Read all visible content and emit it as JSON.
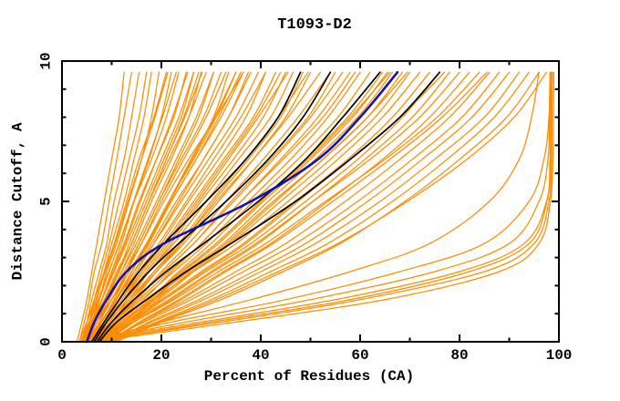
{
  "page": {
    "background": "#ffffff"
  },
  "chart_data": {
    "type": "line",
    "title": "T1093-D2",
    "xlabel": "Percent of Residues (CA)",
    "ylabel": "Distance Cutoff, A",
    "xlim": [
      0,
      100
    ],
    "ylim": [
      0,
      10
    ],
    "x_major_ticks": [
      0,
      20,
      40,
      60,
      80,
      100
    ],
    "x_minor_ticks": [
      10,
      30,
      50,
      70,
      90
    ],
    "y_major_ticks": [
      0,
      5,
      10
    ],
    "y_minor_ticks": [
      1,
      2,
      3,
      4,
      6,
      7,
      8,
      9
    ],
    "grid": false,
    "legend": null,
    "axis_color": "#000000",
    "background_color": "#ffffff",
    "y_anchors": [
      0,
      0.7,
      1.5,
      2.5,
      3.5,
      5,
      6.5,
      8,
      9.6
    ],
    "series": [
      {
        "name": "predicted-model-curves",
        "color": "#ff8c00",
        "stroke_width": 1.25,
        "curves": [
          [
            3,
            4,
            5,
            6,
            7,
            8.5,
            10,
            11.5,
            12.5
          ],
          [
            3.5,
            4.5,
            5.5,
            6.5,
            8,
            9.5,
            11,
            12.5,
            14
          ],
          [
            4,
            5,
            6,
            7.5,
            9,
            10.5,
            12.5,
            14,
            15.5
          ],
          [
            4,
            5.5,
            6.5,
            8,
            9.5,
            11.5,
            13.5,
            15.5,
            17
          ],
          [
            4.5,
            5.5,
            7,
            8.5,
            10,
            12.5,
            14.5,
            16.5,
            18
          ],
          [
            5,
            6,
            7.5,
            9,
            11,
            13.5,
            16,
            18,
            19.5
          ],
          [
            3.5,
            5,
            6.5,
            8.5,
            10.5,
            13,
            15.5,
            18.5,
            21
          ],
          [
            5,
            6.5,
            8,
            10,
            12,
            14.5,
            17.5,
            20,
            22
          ],
          [
            3.5,
            5,
            6.8,
            8.7,
            10.7,
            13.3,
            16,
            18.7,
            21.3
          ],
          [
            4,
            5.8,
            8,
            10.3,
            12.7,
            15.8,
            19,
            22.2,
            25.3
          ],
          [
            3.8,
            5.4,
            7.3,
            9.4,
            11.6,
            14.4,
            17.3,
            20.2,
            23
          ],
          [
            4,
            5.5,
            7.5,
            9.5,
            11.5,
            14.5,
            18,
            21,
            23.5
          ],
          [
            4.5,
            6,
            8,
            10,
            12.5,
            15.5,
            19,
            22.5,
            25
          ],
          [
            5,
            7,
            9,
            11.5,
            13.5,
            17,
            20.5,
            24,
            26.5
          ],
          [
            5.5,
            7.5,
            9.5,
            12,
            14.5,
            18,
            22,
            25.5,
            28
          ],
          [
            4,
            6,
            8.5,
            11,
            14,
            17.5,
            21.5,
            25.5,
            29
          ],
          [
            6,
            8,
            10.5,
            13,
            15.5,
            19.5,
            23.5,
            27.5,
            30.5
          ],
          [
            5,
            7,
            9.5,
            12.5,
            15.5,
            19.5,
            24,
            28.5,
            32
          ],
          [
            6.5,
            8.5,
            11,
            14,
            17,
            21.5,
            26,
            30.5,
            33.5
          ],
          [
            5.5,
            8,
            10.5,
            13.5,
            17,
            21.5,
            26.5,
            31,
            35
          ],
          [
            4.5,
            6.5,
            9,
            11.5,
            14,
            17.5,
            21,
            24.5,
            27.5
          ],
          [
            4,
            6,
            8,
            10.5,
            13,
            16.5,
            20,
            23.5,
            26.5
          ],
          [
            4.2,
            6.2,
            8.7,
            11.3,
            14,
            17.5,
            21,
            24.7,
            28.2
          ],
          [
            5,
            7,
            9.5,
            12,
            15,
            19,
            23,
            27,
            30.5
          ],
          [
            5.2,
            7.8,
            10.8,
            14,
            17.3,
            21.7,
            26.2,
            30.7,
            35
          ],
          [
            5,
            7.5,
            10,
            13,
            16,
            20,
            24.5,
            29,
            33
          ],
          [
            4.5,
            7,
            10,
            13,
            16,
            20.5,
            25.5,
            31,
            36.5
          ],
          [
            6,
            8.5,
            11.5,
            14.5,
            18,
            23,
            28.5,
            33.5,
            38
          ],
          [
            5,
            8,
            11,
            14.5,
            18.5,
            24,
            29.5,
            35,
            39.5
          ],
          [
            6.5,
            9,
            12.5,
            16,
            20,
            25.5,
            31.5,
            37,
            41
          ],
          [
            5.5,
            8.5,
            12,
            16,
            20.5,
            26.5,
            32.5,
            38.5,
            43
          ],
          [
            7,
            10,
            13.5,
            17.5,
            22,
            28,
            34.5,
            40.5,
            45
          ],
          [
            6,
            9.5,
            13,
            17.5,
            22.5,
            29,
            35.5,
            42,
            46.5
          ],
          [
            7.5,
            10.5,
            14.5,
            19,
            24,
            30.5,
            37.5,
            44,
            48.5
          ],
          [
            6.5,
            10,
            14,
            19,
            24.5,
            31.5,
            38.5,
            45,
            50
          ],
          [
            5.5,
            8,
            11,
            14,
            17.5,
            22,
            27,
            31.5,
            36
          ],
          [
            6,
            9,
            12.5,
            16.5,
            21,
            27,
            33,
            39,
            44
          ],
          [
            6,
            8.5,
            11.5,
            15,
            18.5,
            23.5,
            28.5,
            33.5,
            37.5
          ],
          [
            6.5,
            9.5,
            13,
            17,
            21.5,
            27.5,
            33.5,
            39.5,
            45.5
          ],
          [
            7,
            10,
            14,
            18.5,
            23.5,
            30,
            37,
            43.5,
            49.5
          ],
          [
            4.5,
            7,
            10,
            13.5,
            17,
            22,
            27,
            32,
            36.5
          ],
          [
            5.5,
            8.5,
            12,
            15.5,
            19.5,
            25,
            30.5,
            36,
            41
          ],
          [
            5.5,
            9,
            13.5,
            18.5,
            24,
            31,
            38.5,
            45.5,
            52
          ],
          [
            7,
            10.5,
            15,
            20,
            25.5,
            33,
            40.5,
            47.5,
            54
          ],
          [
            6,
            10,
            15,
            20.5,
            26.5,
            34.5,
            42.5,
            50,
            56.5
          ],
          [
            7.5,
            11.5,
            16.5,
            22,
            28,
            36,
            44,
            51.5,
            58
          ],
          [
            6.5,
            11,
            16,
            22.5,
            29,
            37.5,
            46,
            53.5,
            60
          ],
          [
            8,
            12,
            17.5,
            23.5,
            30,
            38.5,
            47.5,
            55.5,
            62
          ],
          [
            7,
            11.5,
            17,
            24,
            31,
            40,
            49,
            57.5,
            64.5
          ],
          [
            8.5,
            13,
            18.5,
            25,
            32.5,
            41.5,
            51,
            59.5,
            66.5
          ],
          [
            7.5,
            12.5,
            18,
            25.5,
            33,
            42.5,
            52.5,
            61.5,
            68.5
          ],
          [
            9,
            13.5,
            19.5,
            26.5,
            34,
            44,
            54,
            63,
            70
          ],
          [
            7,
            10.5,
            15,
            20.5,
            26.5,
            34,
            42,
            49.5,
            55
          ],
          [
            6.5,
            10.5,
            15.5,
            21.5,
            28,
            36,
            44.5,
            52.5,
            59
          ],
          [
            8,
            12.5,
            18,
            24.5,
            31.5,
            40.5,
            50,
            58.5,
            65.5
          ],
          [
            7.5,
            12,
            17.5,
            24,
            31,
            40,
            49.5,
            58,
            66
          ],
          [
            8.5,
            13,
            19,
            26,
            33.5,
            43,
            52.5,
            61.5,
            69.5
          ],
          [
            7,
            12,
            18.5,
            26.5,
            35,
            45.5,
            55.5,
            64.5,
            72
          ],
          [
            8,
            13,
            20,
            28,
            36.5,
            47,
            57.5,
            66.5,
            74
          ],
          [
            7.5,
            13.5,
            20.5,
            29,
            38,
            49,
            59.5,
            68.5,
            76
          ],
          [
            9,
            14.5,
            22,
            30.5,
            39.5,
            50.5,
            61,
            70.5,
            78
          ],
          [
            8.5,
            14,
            21.5,
            30,
            39,
            50.5,
            62,
            72,
            80
          ],
          [
            9.5,
            15.5,
            23.5,
            32.5,
            42,
            53.5,
            64.5,
            74,
            82
          ],
          [
            8,
            14.5,
            22.5,
            31.5,
            41,
            53,
            65,
            75.5,
            84
          ],
          [
            9,
            14,
            20.5,
            28.5,
            37,
            47.5,
            58,
            68,
            77
          ],
          [
            9,
            16,
            25,
            35,
            45,
            57,
            68,
            78,
            86
          ],
          [
            8.5,
            16.5,
            26,
            36.5,
            47,
            59.5,
            70.5,
            80.5,
            88
          ],
          [
            10,
            17.5,
            27.5,
            38.5,
            49,
            61.5,
            72.5,
            82.5,
            90
          ],
          [
            9.5,
            18,
            28.5,
            40,
            51,
            64,
            75,
            85,
            92
          ],
          [
            10.5,
            19,
            30,
            42,
            53.5,
            66.5,
            77.5,
            87,
            94
          ],
          [
            11,
            20,
            32,
            44.5,
            56,
            69,
            80,
            89.5,
            96
          ],
          [
            10,
            19.5,
            31,
            43.5,
            55.5,
            69.5,
            81.5,
            91,
            97.5
          ],
          [
            10,
            16,
            24,
            33,
            42.5,
            54.5,
            66,
            76.5,
            85.5
          ],
          [
            4,
            28,
            55,
            80,
            93,
            97.5,
            98.2,
            98.3,
            98.4
          ],
          [
            5,
            32,
            60,
            85,
            95,
            98,
            98.5,
            98.6,
            98.7
          ],
          [
            4.5,
            25,
            50,
            75,
            90,
            96,
            97.8,
            98.1,
            98.2
          ],
          [
            6,
            35,
            65,
            88,
            96,
            98.3,
            98.8,
            98.9,
            99
          ],
          [
            5.5,
            30,
            58,
            82,
            94,
            97.6,
            98.4,
            98.5,
            98.6
          ],
          [
            5,
            22,
            45,
            68,
            85,
            94,
            97,
            98,
            98.2
          ],
          [
            6,
            20,
            38,
            58,
            74,
            86,
            92,
            94.5,
            96
          ]
        ]
      },
      {
        "name": "highlighted-model-curves",
        "color": "#000000",
        "stroke_width": 1.7,
        "curves": [
          [
            6,
            8.5,
            11.5,
            15.5,
            20.5,
            29,
            37,
            43.5,
            48
          ],
          [
            6.5,
            9,
            12.5,
            17.5,
            23.5,
            33,
            41.5,
            48.5,
            54
          ],
          [
            7,
            10,
            14.5,
            21,
            28.5,
            39.5,
            49,
            56.5,
            64
          ],
          [
            7.5,
            11,
            17,
            25,
            34,
            47,
            58,
            68,
            76
          ]
        ]
      },
      {
        "name": "best-model-curve",
        "color": "#1212b4",
        "stroke_width": 2.6,
        "curves": [
          [
            5,
            6.5,
            9,
            13,
            20.5,
            38,
            51.5,
            60,
            67.5
          ]
        ]
      }
    ]
  }
}
